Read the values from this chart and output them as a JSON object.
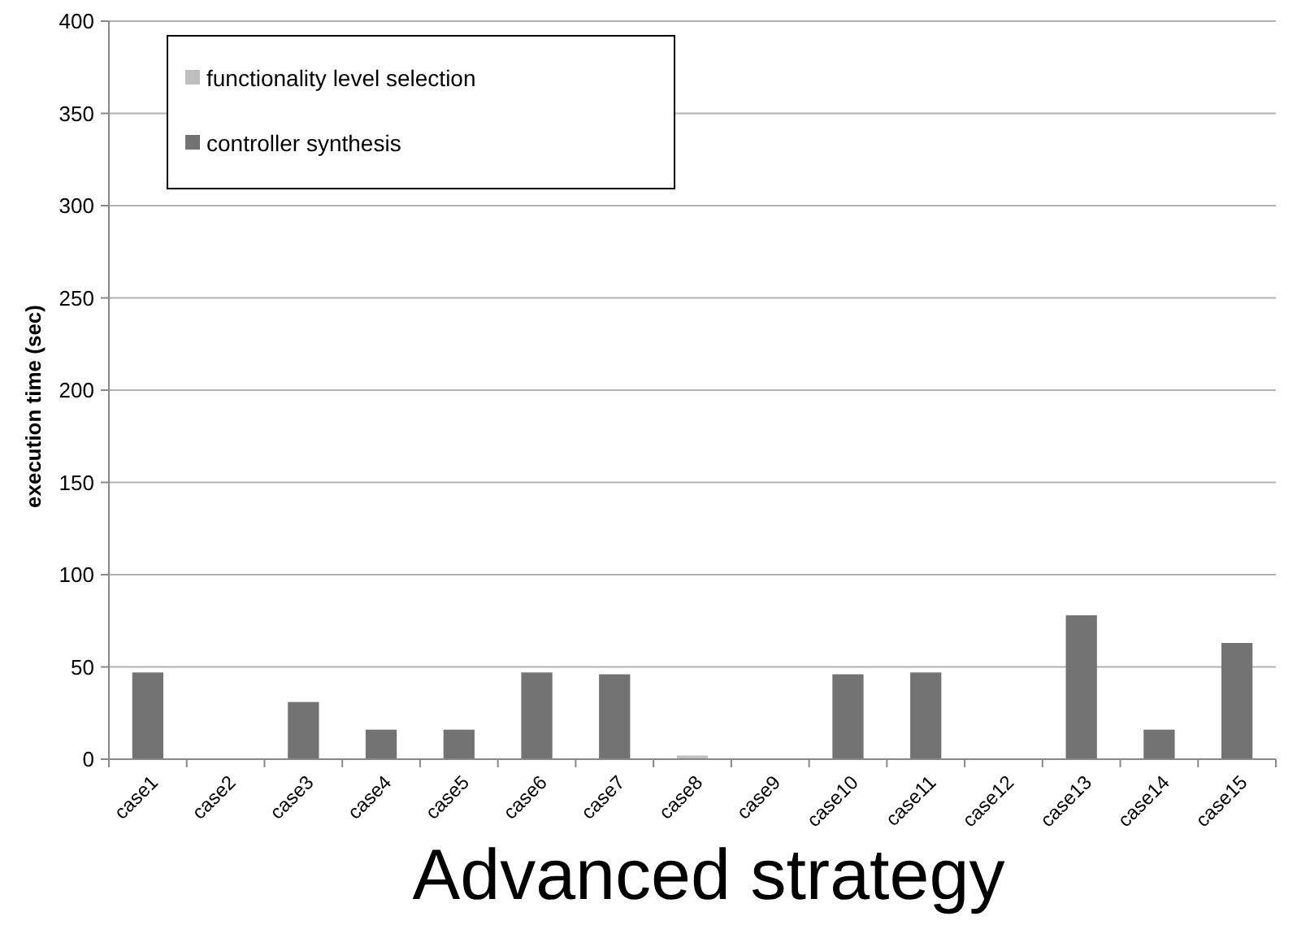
{
  "chart_data": {
    "type": "bar",
    "title": "Advanced strategy",
    "ylabel": "execution time (sec)",
    "categories": [
      "case1",
      "case2",
      "case3",
      "case4",
      "case5",
      "case6",
      "case7",
      "case8",
      "case9",
      "case10",
      "case11",
      "case12",
      "case13",
      "case14",
      "case15"
    ],
    "series": [
      {
        "name": "functionality level selection",
        "color": "#bfbfbf",
        "values": [
          0,
          0,
          0,
          0,
          0,
          0,
          0,
          2,
          0,
          0,
          0,
          0,
          0,
          0,
          0
        ]
      },
      {
        "name": "controller synthesis",
        "color": "#737373",
        "values": [
          47,
          0,
          31,
          16,
          16,
          47,
          46,
          0,
          0,
          46,
          47,
          0,
          78,
          16,
          63
        ]
      }
    ],
    "ylim": [
      0,
      400
    ],
    "yticks": [
      0,
      50,
      100,
      150,
      200,
      250,
      300,
      350,
      400
    ],
    "grid": "y",
    "legend": "top left"
  }
}
